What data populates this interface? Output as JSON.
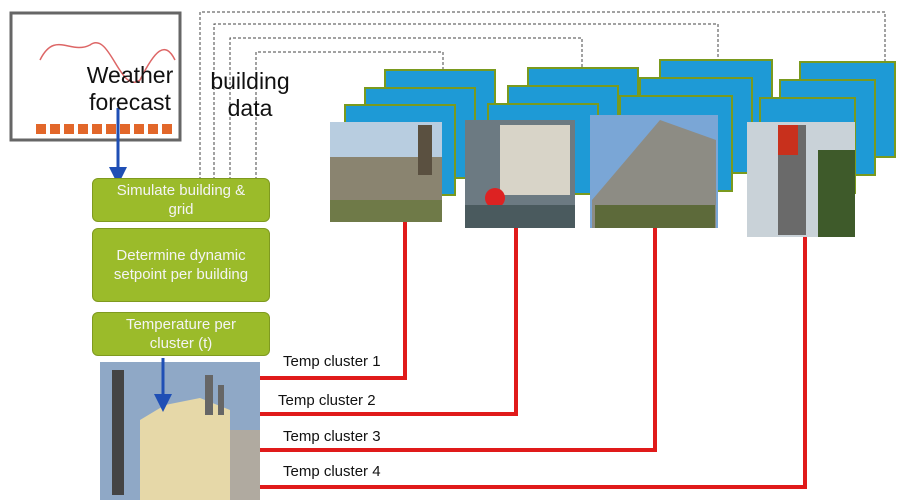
{
  "weather": {
    "label": "Weather forecast"
  },
  "building_data": {
    "label": "building data"
  },
  "steps": [
    "Simulate building & grid",
    "Determine dynamic setpoint per building",
    "Temperature per cluster (t)"
  ],
  "clusters": [
    "Temp cluster 1",
    "Temp cluster 2",
    "Temp cluster 3",
    "Temp cluster 4"
  ]
}
